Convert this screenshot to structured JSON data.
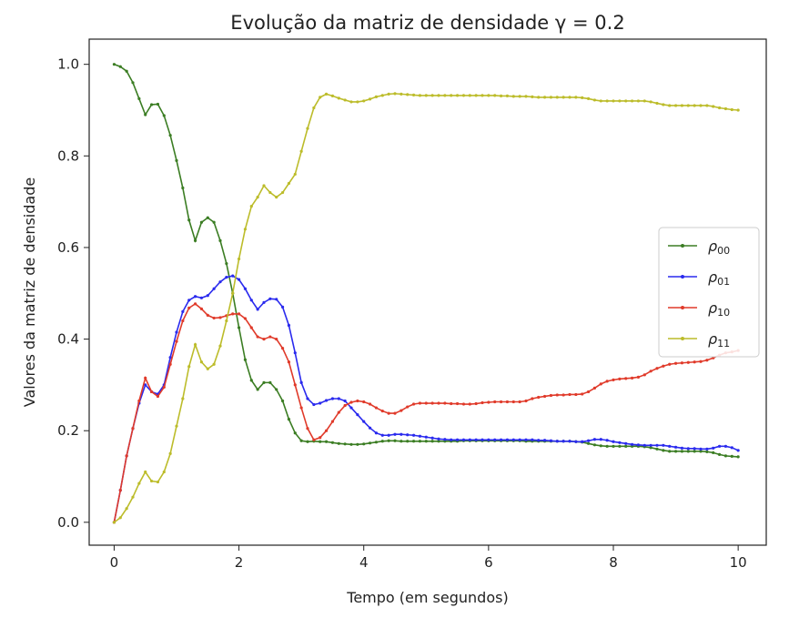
{
  "chart_data": {
    "type": "line",
    "title": "Evolução da matriz de densidade γ = 0.2",
    "xlabel": "Tempo (em segundos)",
    "ylabel": "Valores da matriz de densidade",
    "xlim": [
      -0.4,
      10.45
    ],
    "ylim": [
      -0.05,
      1.055
    ],
    "xticks": [
      "0",
      "2",
      "4",
      "6",
      "8",
      "10"
    ],
    "yticks": [
      "0.0",
      "0.2",
      "0.4",
      "0.6",
      "0.8",
      "1.0"
    ],
    "grid": false,
    "legend": "center-right",
    "x": [
      0,
      0.1,
      0.2,
      0.3,
      0.4,
      0.5,
      0.6,
      0.7,
      0.8,
      0.9,
      1.0,
      1.1,
      1.2,
      1.3,
      1.4,
      1.5,
      1.6,
      1.7,
      1.8,
      1.9,
      2.0,
      2.1,
      2.2,
      2.3,
      2.4,
      2.5,
      2.6,
      2.7,
      2.8,
      2.9,
      3.0,
      3.1,
      3.2,
      3.3,
      3.4,
      3.5,
      3.6,
      3.7,
      3.8,
      3.9,
      4.0,
      4.1,
      4.2,
      4.3,
      4.4,
      4.5,
      4.6,
      4.7,
      4.8,
      4.9,
      5.0,
      5.1,
      5.2,
      5.3,
      5.4,
      5.5,
      5.6,
      5.7,
      5.8,
      5.9,
      6.0,
      6.1,
      6.2,
      6.3,
      6.4,
      6.5,
      6.6,
      6.7,
      6.8,
      6.9,
      7.0,
      7.1,
      7.2,
      7.3,
      7.4,
      7.5,
      7.6,
      7.7,
      7.8,
      7.9,
      8.0,
      8.1,
      8.2,
      8.3,
      8.4,
      8.5,
      8.6,
      8.7,
      8.8,
      8.9,
      9.0,
      9.1,
      9.2,
      9.3,
      9.4,
      9.5,
      9.6,
      9.7,
      9.8,
      9.9,
      10.0
    ],
    "series": [
      {
        "name": "ρ00",
        "label_main": "ρ",
        "label_sub": "00",
        "color": "#3b7d23",
        "values": [
          1.0,
          0.995,
          0.985,
          0.96,
          0.925,
          0.89,
          0.912,
          0.913,
          0.888,
          0.845,
          0.79,
          0.73,
          0.66,
          0.615,
          0.655,
          0.665,
          0.655,
          0.615,
          0.565,
          0.5,
          0.425,
          0.355,
          0.31,
          0.29,
          0.305,
          0.305,
          0.29,
          0.265,
          0.225,
          0.195,
          0.178,
          0.176,
          0.177,
          0.176,
          0.176,
          0.174,
          0.172,
          0.171,
          0.17,
          0.17,
          0.171,
          0.173,
          0.175,
          0.177,
          0.178,
          0.178,
          0.177,
          0.177,
          0.177,
          0.177,
          0.177,
          0.177,
          0.177,
          0.177,
          0.177,
          0.177,
          0.178,
          0.178,
          0.178,
          0.178,
          0.178,
          0.178,
          0.178,
          0.178,
          0.178,
          0.178,
          0.177,
          0.177,
          0.177,
          0.177,
          0.177,
          0.177,
          0.177,
          0.177,
          0.176,
          0.175,
          0.172,
          0.169,
          0.167,
          0.166,
          0.166,
          0.166,
          0.166,
          0.166,
          0.166,
          0.165,
          0.163,
          0.16,
          0.157,
          0.155,
          0.155,
          0.155,
          0.155,
          0.155,
          0.155,
          0.154,
          0.152,
          0.148,
          0.145,
          0.144,
          0.143
        ]
      },
      {
        "name": "ρ01",
        "label_main": "ρ",
        "label_sub": "01",
        "color": "#2a2aee",
        "values": [
          0.0,
          0.07,
          0.145,
          0.205,
          0.26,
          0.3,
          0.285,
          0.28,
          0.3,
          0.36,
          0.415,
          0.46,
          0.485,
          0.493,
          0.49,
          0.495,
          0.51,
          0.525,
          0.535,
          0.538,
          0.53,
          0.51,
          0.485,
          0.465,
          0.48,
          0.488,
          0.487,
          0.47,
          0.43,
          0.37,
          0.305,
          0.27,
          0.257,
          0.26,
          0.266,
          0.27,
          0.27,
          0.265,
          0.25,
          0.235,
          0.22,
          0.206,
          0.195,
          0.19,
          0.19,
          0.192,
          0.192,
          0.191,
          0.19,
          0.188,
          0.186,
          0.184,
          0.182,
          0.181,
          0.18,
          0.18,
          0.18,
          0.18,
          0.18,
          0.18,
          0.18,
          0.18,
          0.18,
          0.18,
          0.18,
          0.18,
          0.18,
          0.18,
          0.179,
          0.179,
          0.178,
          0.177,
          0.177,
          0.177,
          0.176,
          0.176,
          0.178,
          0.181,
          0.181,
          0.179,
          0.176,
          0.174,
          0.172,
          0.17,
          0.169,
          0.168,
          0.168,
          0.168,
          0.168,
          0.166,
          0.164,
          0.162,
          0.161,
          0.161,
          0.16,
          0.16,
          0.162,
          0.166,
          0.166,
          0.163,
          0.157
        ]
      },
      {
        "name": "ρ10",
        "label_main": "ρ",
        "label_sub": "10",
        "color": "#e03a2a",
        "values": [
          0.0,
          0.07,
          0.145,
          0.205,
          0.265,
          0.315,
          0.285,
          0.275,
          0.295,
          0.345,
          0.395,
          0.44,
          0.468,
          0.477,
          0.466,
          0.452,
          0.446,
          0.447,
          0.451,
          0.455,
          0.455,
          0.445,
          0.425,
          0.405,
          0.4,
          0.405,
          0.4,
          0.38,
          0.35,
          0.3,
          0.25,
          0.205,
          0.18,
          0.185,
          0.2,
          0.22,
          0.24,
          0.255,
          0.262,
          0.265,
          0.263,
          0.258,
          0.25,
          0.243,
          0.238,
          0.238,
          0.244,
          0.252,
          0.258,
          0.26,
          0.26,
          0.26,
          0.26,
          0.26,
          0.259,
          0.259,
          0.258,
          0.258,
          0.259,
          0.261,
          0.262,
          0.263,
          0.263,
          0.263,
          0.263,
          0.263,
          0.265,
          0.27,
          0.273,
          0.275,
          0.277,
          0.278,
          0.278,
          0.279,
          0.279,
          0.28,
          0.285,
          0.293,
          0.302,
          0.308,
          0.311,
          0.313,
          0.314,
          0.315,
          0.317,
          0.322,
          0.33,
          0.336,
          0.341,
          0.345,
          0.347,
          0.348,
          0.349,
          0.35,
          0.351,
          0.354,
          0.359,
          0.365,
          0.37,
          0.372,
          0.375
        ]
      },
      {
        "name": "ρ11",
        "label_main": "ρ",
        "label_sub": "11",
        "color": "#bcbc2a",
        "values": [
          0.0,
          0.01,
          0.03,
          0.055,
          0.085,
          0.11,
          0.09,
          0.088,
          0.11,
          0.15,
          0.21,
          0.27,
          0.34,
          0.388,
          0.35,
          0.335,
          0.345,
          0.385,
          0.44,
          0.5,
          0.575,
          0.64,
          0.69,
          0.71,
          0.735,
          0.72,
          0.71,
          0.72,
          0.74,
          0.76,
          0.81,
          0.86,
          0.905,
          0.928,
          0.935,
          0.931,
          0.926,
          0.922,
          0.918,
          0.918,
          0.92,
          0.924,
          0.929,
          0.932,
          0.935,
          0.936,
          0.935,
          0.934,
          0.933,
          0.932,
          0.932,
          0.932,
          0.932,
          0.932,
          0.932,
          0.932,
          0.932,
          0.932,
          0.932,
          0.932,
          0.932,
          0.932,
          0.931,
          0.931,
          0.93,
          0.93,
          0.93,
          0.929,
          0.928,
          0.928,
          0.928,
          0.928,
          0.928,
          0.928,
          0.928,
          0.927,
          0.925,
          0.922,
          0.92,
          0.92,
          0.92,
          0.92,
          0.92,
          0.92,
          0.92,
          0.92,
          0.918,
          0.915,
          0.912,
          0.91,
          0.91,
          0.91,
          0.91,
          0.91,
          0.91,
          0.91,
          0.908,
          0.905,
          0.903,
          0.901,
          0.9
        ]
      }
    ]
  }
}
